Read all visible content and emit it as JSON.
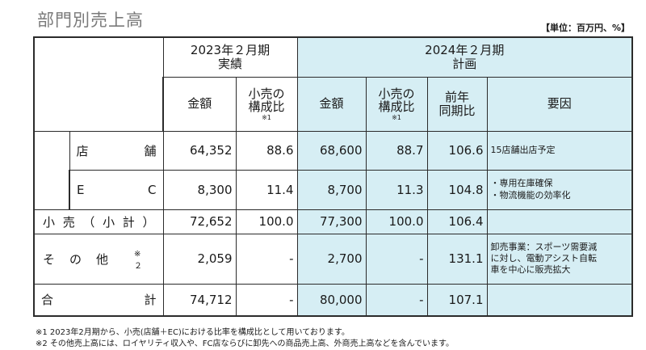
{
  "title": "部門別売上高",
  "unit": "【単位：百万円、%】",
  "header": {
    "fy2023": {
      "line1": "2023年２月期",
      "line2": "実績"
    },
    "fy2024": {
      "line1": "2024年２月期",
      "line2": "計画"
    },
    "amount": "金額",
    "ratio_line1": "小売の",
    "ratio_line2": "構成比",
    "ratio_note": "※1",
    "yoy_line1": "前年",
    "yoy_line2": "同期比",
    "factor": "要因"
  },
  "rows": {
    "store": {
      "label_a": "店",
      "label_b": "舗",
      "amt2023": "64,352",
      "ratio2023": "88.6",
      "amt2024": "68,600",
      "ratio2024": "88.7",
      "yoy": "106.6",
      "factor": [
        "15店舗出店予定"
      ]
    },
    "ec": {
      "label_a": "E",
      "label_b": "C",
      "amt2023": "8,300",
      "ratio2023": "11.4",
      "amt2024": "8,700",
      "ratio2024": "11.3",
      "yoy": "104.8",
      "factor": [
        "・専用在庫確保",
        "・物流機能の効率化"
      ]
    },
    "retail": {
      "label_chars": [
        "小",
        "売",
        "（",
        "小",
        "計",
        "）"
      ],
      "amt2023": "72,652",
      "ratio2023": "100.0",
      "amt2024": "77,300",
      "ratio2024": "100.0",
      "yoy": "106.4",
      "factor": []
    },
    "other": {
      "label_chars": [
        "そ",
        "の",
        "他"
      ],
      "note": "※　２",
      "amt2023": "2,059",
      "ratio2023": "-",
      "amt2024": "2,700",
      "ratio2024": "-",
      "yoy": "131.1",
      "factor": [
        "卸売事業：スポーツ需要減",
        "に対し、電動アシスト自転",
        "車を中心に販売拡大"
      ]
    },
    "total": {
      "label_a": "合",
      "label_b": "計",
      "amt2023": "74,712",
      "ratio2023": "-",
      "amt2024": "80,000",
      "ratio2024": "-",
      "yoy": "107.1",
      "factor": []
    }
  },
  "footnotes": {
    "note1": "※1 2023年2月期から、小売(店舗＋EC)における比率を構成比として用いております。",
    "note2": "※2 その他売上高には、ロイヤリティ収入や、FC店ならびに卸先への商品売上高、外商売上高などを含んでいます。"
  },
  "colors": {
    "plan_bg": "#d6eef4",
    "title": "#7a7a7a",
    "border": "#2b2b2b"
  }
}
